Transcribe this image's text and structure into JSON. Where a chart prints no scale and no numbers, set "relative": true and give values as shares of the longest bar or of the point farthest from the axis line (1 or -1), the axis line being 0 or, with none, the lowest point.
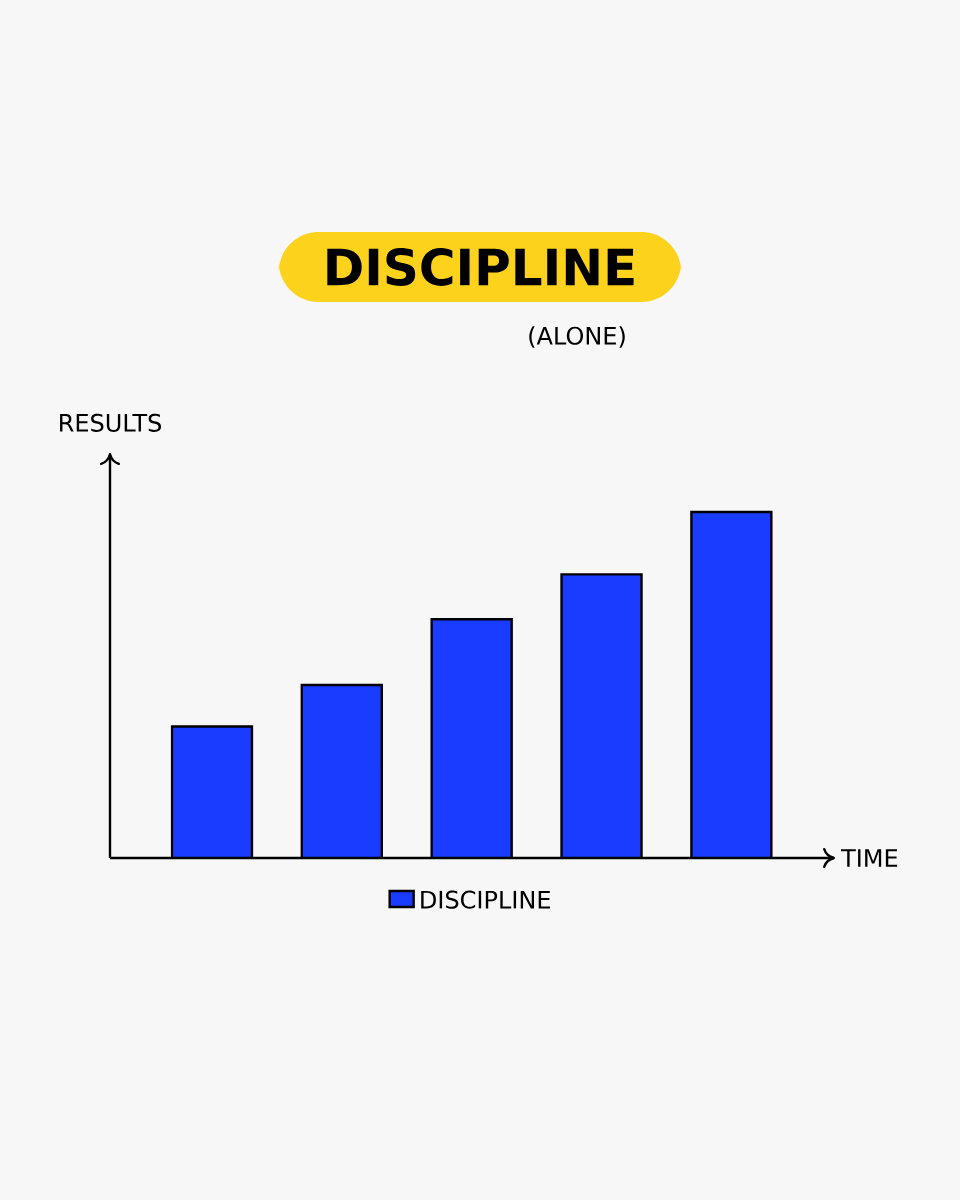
{
  "chart_data": {
    "type": "bar",
    "title": "DISCIPLINE",
    "subtitle": "(ALONE)",
    "xlabel": "TIME",
    "ylabel": "RESULTS",
    "categories": [
      null,
      null,
      null,
      null,
      null
    ],
    "relative": true,
    "legend": "bottom",
    "series": [
      {
        "name": "DISCIPLINE",
        "color": "#1a3cff",
        "values": [
          0.38,
          0.5,
          0.69,
          0.82,
          1
        ]
      }
    ]
  }
}
